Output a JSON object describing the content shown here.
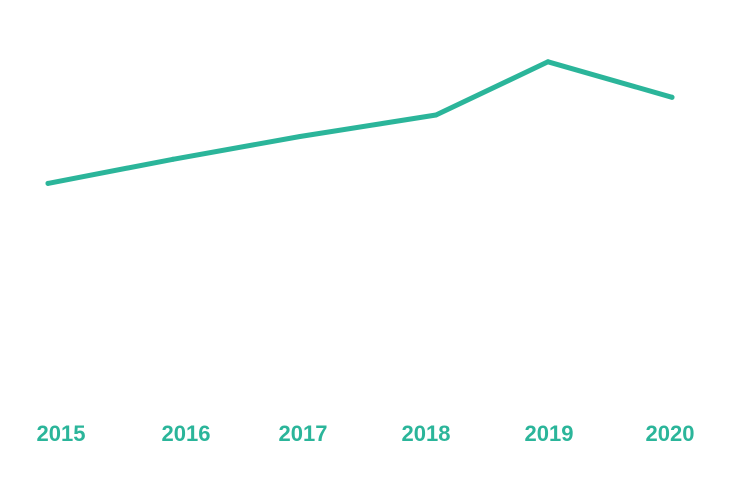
{
  "chart_data": {
    "type": "line",
    "x": [
      "2015",
      "2016",
      "2017",
      "2018",
      "2019",
      "2020"
    ],
    "series": [
      {
        "values": [
          54.2,
          58.0,
          61.6,
          65.0,
          73.4,
          67.8
        ],
        "color": "#2bb59a"
      }
    ],
    "title": "",
    "xlabel": "",
    "ylabel": "",
    "ylim": [
      20,
      80
    ],
    "grid": false,
    "legend": "none",
    "tick_color": "#2bb59a"
  }
}
